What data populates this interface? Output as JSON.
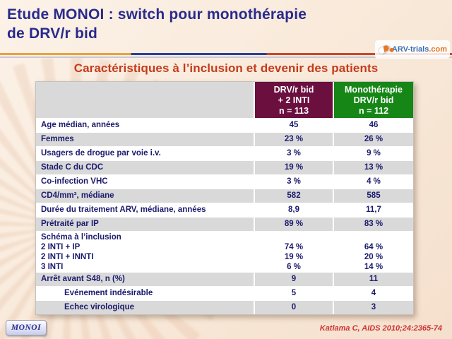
{
  "colors": {
    "title": "#2A2A8C",
    "subtitle": "#C43C1C",
    "header_col1_bg": "#6B0F3F",
    "header_col2_bg": "#168716",
    "row_text": "#1B1B6E",
    "row_alt_bg": "#D9D9D9",
    "citation": "#CC3333",
    "divider_orange": "#E8A33D",
    "divider_blue": "#2B3F9E",
    "divider_red": "#C8472A"
  },
  "header": {
    "title_line1": "Etude MONOI : switch pour monothérapie",
    "title_line2": "de DRV/r bid",
    "logo_text": "ARV-trials",
    "logo_suffix": ".com",
    "logo_icon": "pill-icon"
  },
  "subtitle": "Caractéristiques à l’inclusion et devenir des patients",
  "table": {
    "columns": [
      {
        "line1": "DRV/r bid",
        "line2": "+ 2 INTI",
        "line3": "n = 113"
      },
      {
        "line1": "Monothérapie",
        "line2": "DRV/r bid",
        "line3": "n = 112"
      }
    ],
    "rows": [
      {
        "label": "Age médian, années",
        "values": [
          "45",
          "46"
        ]
      },
      {
        "label": "Femmes",
        "values": [
          "23 %",
          "26 %"
        ]
      },
      {
        "label": "Usagers de drogue par voie i.v.",
        "values": [
          "3 %",
          "9 %"
        ]
      },
      {
        "label": "Stade C du CDC",
        "values": [
          "19 %",
          "13 %"
        ]
      },
      {
        "label": "Co-infection VHC",
        "values": [
          "3 %",
          "4 %"
        ]
      },
      {
        "label": "CD4/mm³, médiane",
        "values": [
          "582",
          "585"
        ]
      },
      {
        "label": "Durée du traitement ARV, médiane, années",
        "values": [
          "8,9",
          "11,7"
        ]
      },
      {
        "label": "Prétraité par IP",
        "values": [
          "89 %",
          "83 %"
        ]
      },
      {
        "label_lines": [
          "Schéma à l’inclusion",
          "2 INTI + IP",
          "2 INTI + INNTI",
          "3 INTI"
        ],
        "value_lines": [
          [
            "",
            "74 %",
            "19 %",
            "6 %"
          ],
          [
            "",
            "64 %",
            "20 %",
            "14 %"
          ]
        ]
      },
      {
        "label": "Arrêt avant S48, n (%)",
        "values": [
          "9",
          "11"
        ]
      },
      {
        "label": "Evénement indésirable",
        "values": [
          "5",
          "4"
        ],
        "indent": true
      },
      {
        "label": "Echec virologique",
        "values": [
          "0",
          "3"
        ],
        "indent": true
      }
    ]
  },
  "footer": {
    "tab_label": "MONOI",
    "citation": "Katlama C, AIDS 2010;24:2365-74"
  }
}
